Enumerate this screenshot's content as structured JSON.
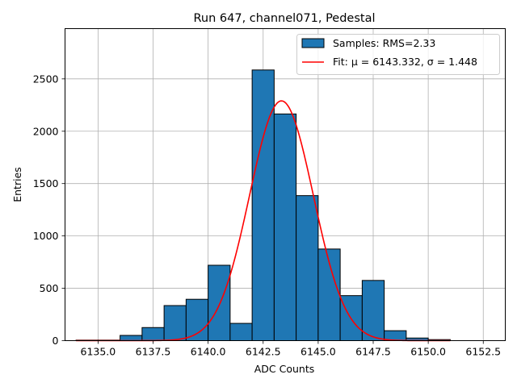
{
  "chart_data": {
    "type": "bar",
    "title": "Run 647, channel071, Pedestal",
    "xlabel": "ADC Counts",
    "ylabel": "Entries",
    "xlim": [
      6133.5,
      6153.5
    ],
    "ylim": [
      0,
      2980
    ],
    "grid": true,
    "legend_position": "top-right",
    "bin_width": 1.0,
    "bins": [
      {
        "left": 6134,
        "value": 5
      },
      {
        "left": 6135,
        "value": 5
      },
      {
        "left": 6136,
        "value": 50
      },
      {
        "left": 6137,
        "value": 125
      },
      {
        "left": 6138,
        "value": 335
      },
      {
        "left": 6139,
        "value": 395
      },
      {
        "left": 6140,
        "value": 720
      },
      {
        "left": 6141,
        "value": 165
      },
      {
        "left": 6142,
        "value": 2585
      },
      {
        "left": 6143,
        "value": 2165
      },
      {
        "left": 6144,
        "value": 1385
      },
      {
        "left": 6145,
        "value": 875
      },
      {
        "left": 6146,
        "value": 430
      },
      {
        "left": 6147,
        "value": 575
      },
      {
        "left": 6148,
        "value": 95
      },
      {
        "left": 6149,
        "value": 25
      },
      {
        "left": 6150,
        "value": 10
      }
    ],
    "x_ticks": [
      "6135.0",
      "6137.5",
      "6140.0",
      "6142.5",
      "6145.0",
      "6147.5",
      "6150.0",
      "6152.5"
    ],
    "x_tick_values": [
      6135.0,
      6137.5,
      6140.0,
      6142.5,
      6145.0,
      6147.5,
      6150.0,
      6152.5
    ],
    "y_ticks": [
      "0",
      "500",
      "1000",
      "1500",
      "2000",
      "2500"
    ],
    "y_tick_values": [
      0,
      500,
      1000,
      1500,
      2000,
      2500
    ],
    "fit": {
      "mu": 6143.332,
      "sigma": 1.448,
      "amplitude": 2290,
      "x_range": [
        6134,
        6151
      ]
    },
    "series": [
      {
        "name": "Samples: RMS=2.33",
        "kind": "histogram",
        "color": "#1f77b4"
      },
      {
        "name": "Fit: μ = 6143.332, σ = 1.448",
        "kind": "line",
        "color": "#ff0000"
      }
    ]
  }
}
